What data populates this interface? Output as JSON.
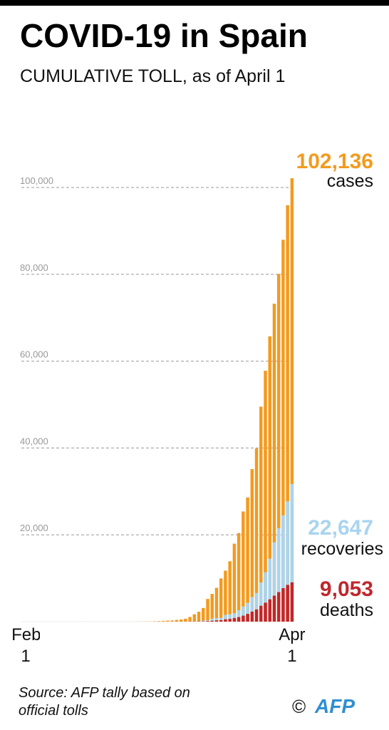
{
  "chart_data": {
    "type": "bar",
    "title": "COVID-19 in Spain",
    "subtitle": "CUMULATIVE TOLL, as of April 1",
    "source": "Source: AFP tally based on official tolls",
    "credit": "©",
    "logo": "AFP",
    "categories": [
      "Feb 1",
      null,
      null,
      null,
      null,
      null,
      null,
      null,
      null,
      null,
      null,
      null,
      null,
      null,
      null,
      null,
      null,
      null,
      null,
      null,
      null,
      null,
      null,
      null,
      null,
      null,
      null,
      null,
      null,
      null,
      null,
      null,
      null,
      null,
      null,
      null,
      null,
      null,
      null,
      null,
      null,
      null,
      null,
      null,
      null,
      null,
      null,
      null,
      null,
      null,
      null,
      null,
      null,
      null,
      null,
      null,
      null,
      null,
      null,
      null,
      "Apr 1"
    ],
    "series": [
      {
        "name": "cases",
        "color": "#f39a1f",
        "values": [
          1,
          1,
          1,
          1,
          1,
          1,
          1,
          1,
          2,
          2,
          2,
          2,
          2,
          2,
          2,
          2,
          2,
          2,
          2,
          2,
          2,
          2,
          2,
          2,
          6,
          13,
          15,
          32,
          45,
          84,
          120,
          165,
          222,
          259,
          400,
          500,
          673,
          1073,
          1695,
          2277,
          3146,
          5232,
          6391,
          7798,
          9942,
          11748,
          13910,
          17963,
          20410,
          25374,
          28603,
          35136,
          39885,
          49515,
          57786,
          65719,
          73235,
          80110,
          87956,
          95923,
          102136
        ],
        "value_labels": [
          null,
          null,
          null,
          null,
          null,
          null,
          null,
          null,
          null,
          null,
          null,
          null,
          null,
          null,
          null,
          null,
          null,
          null,
          null,
          null,
          null,
          null,
          null,
          null,
          null,
          null,
          null,
          null,
          null,
          null,
          null,
          null,
          null,
          null,
          null,
          null,
          null,
          null,
          null,
          null,
          null,
          null,
          null,
          null,
          null,
          null,
          null,
          null,
          null,
          null,
          null,
          null,
          null,
          null,
          null,
          null,
          null,
          null,
          null,
          null,
          "102,136"
        ]
      },
      {
        "name": "recoveries",
        "color": "#a9d4ef",
        "values": [
          0,
          0,
          0,
          0,
          0,
          0,
          0,
          0,
          0,
          0,
          0,
          0,
          0,
          0,
          2,
          2,
          2,
          2,
          2,
          2,
          2,
          2,
          2,
          2,
          2,
          2,
          2,
          2,
          2,
          2,
          2,
          2,
          2,
          2,
          2,
          2,
          2,
          30,
          32,
          32,
          183,
          193,
          517,
          517,
          530,
          1028,
          1081,
          1107,
          1588,
          2125,
          2575,
          3355,
          3794,
          5367,
          7015,
          9357,
          12285,
          14709,
          16780,
          19259,
          22647
        ],
        "value_labels": [
          null,
          null,
          null,
          null,
          null,
          null,
          null,
          null,
          null,
          null,
          null,
          null,
          null,
          null,
          null,
          null,
          null,
          null,
          null,
          null,
          null,
          null,
          null,
          null,
          null,
          null,
          null,
          null,
          null,
          null,
          null,
          null,
          null,
          null,
          null,
          null,
          null,
          null,
          null,
          null,
          null,
          null,
          null,
          null,
          null,
          null,
          null,
          null,
          null,
          null,
          null,
          null,
          null,
          null,
          null,
          null,
          null,
          null,
          null,
          null,
          "22,647"
        ]
      },
      {
        "name": "deaths",
        "color": "#c0272d",
        "values": [
          0,
          0,
          0,
          0,
          0,
          0,
          0,
          0,
          0,
          0,
          0,
          0,
          0,
          0,
          0,
          0,
          0,
          0,
          0,
          0,
          0,
          0,
          0,
          0,
          0,
          0,
          0,
          0,
          0,
          0,
          0,
          1,
          2,
          3,
          5,
          10,
          17,
          28,
          35,
          54,
          84,
          133,
          195,
          289,
          342,
          533,
          623,
          830,
          1043,
          1375,
          1772,
          2311,
          2808,
          3647,
          4365,
          5138,
          5982,
          6803,
          7716,
          8464,
          9053
        ],
        "value_labels": [
          null,
          null,
          null,
          null,
          null,
          null,
          null,
          null,
          null,
          null,
          null,
          null,
          null,
          null,
          null,
          null,
          null,
          null,
          null,
          null,
          null,
          null,
          null,
          null,
          null,
          null,
          null,
          null,
          null,
          null,
          null,
          null,
          null,
          null,
          null,
          null,
          null,
          null,
          null,
          null,
          null,
          null,
          null,
          null,
          null,
          null,
          null,
          null,
          null,
          null,
          null,
          null,
          null,
          null,
          null,
          null,
          null,
          null,
          null,
          null,
          "9,053"
        ]
      }
    ],
    "ylim": [
      0,
      105000
    ],
    "yticks": [
      {
        "value": 20000,
        "label": "20,000"
      },
      {
        "value": 40000,
        "label": "40,000"
      },
      {
        "value": 60000,
        "label": "60,000"
      },
      {
        "value": 80000,
        "label": "80,000"
      },
      {
        "value": 100000,
        "label": "100,000"
      }
    ],
    "grid": true
  }
}
